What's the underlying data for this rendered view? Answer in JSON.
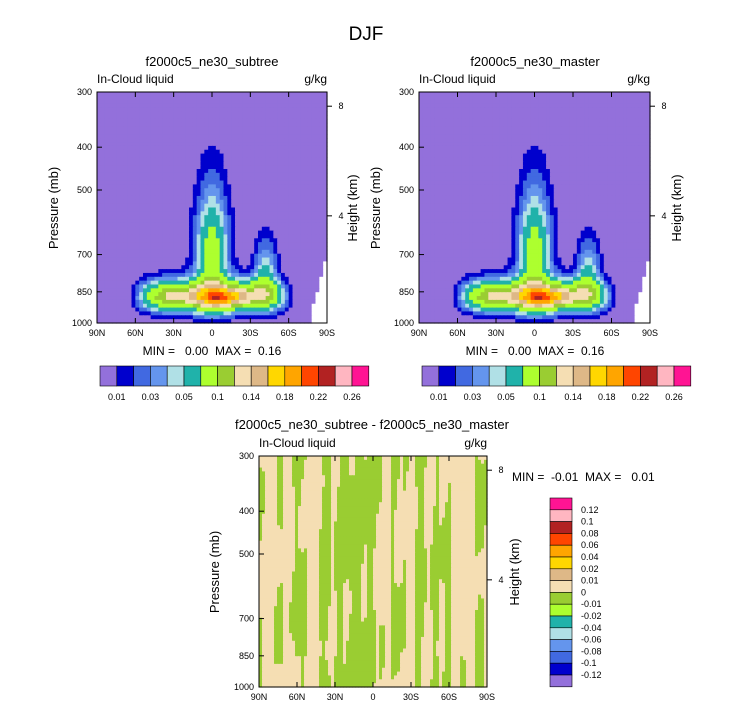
{
  "figure": {
    "title": "DJF"
  },
  "palette": {
    "ctrl_colors": [
      "#9370DB",
      "#0000CD",
      "#4169E1",
      "#6495ED",
      "#B0E0E6",
      "#20B2AA",
      "#ADFF2F",
      "#9ACD32",
      "#F5DEB3",
      "#DEB887",
      "#FFD700",
      "#FFA500",
      "#FF4500",
      "#B22222",
      "#FFB6C1",
      "#FF1493"
    ],
    "diff_colors": [
      "#9370DB",
      "#0000CD",
      "#4169E1",
      "#6495ED",
      "#B0E0E6",
      "#20B2AA",
      "#ADFF2F",
      "#9ACD32",
      "#F5DEB3",
      "#DEB887",
      "#FFD700",
      "#FFA500",
      "#FF4500",
      "#B22222",
      "#FFB6C1",
      "#FF1493"
    ]
  },
  "chart_data": [
    {
      "type": "heatmap",
      "id": "subtree",
      "title": "f2000c5_ne30_subtree",
      "left_label": "In-Cloud liquid",
      "right_label": "g/kg",
      "ylabel": "Pressure (mb)",
      "ylabel_right": "Height (km)",
      "x_ticks": [
        "90N",
        "60N",
        "30N",
        "0",
        "30S",
        "60S",
        "90S"
      ],
      "y_ticks": [
        "300",
        "400",
        "500",
        "700",
        "850",
        "1000"
      ],
      "y_ticks_right": [
        "8",
        "4"
      ],
      "stats": "MIN =   0.00  MAX =  0.16",
      "legend_labels": [
        "0.01",
        "0.03",
        "0.05",
        "0.1",
        "0.14",
        "0.18",
        "0.22",
        "0.26"
      ],
      "field": "cloud_liquid"
    },
    {
      "type": "heatmap",
      "id": "master",
      "title": "f2000c5_ne30_master",
      "left_label": "In-Cloud liquid",
      "right_label": "g/kg",
      "ylabel": "Pressure (mb)",
      "ylabel_right": "Height (km)",
      "x_ticks": [
        "90N",
        "60N",
        "30N",
        "0",
        "30S",
        "60S",
        "90S"
      ],
      "y_ticks": [
        "300",
        "400",
        "500",
        "700",
        "850",
        "1000"
      ],
      "y_ticks_right": [
        "8",
        "4"
      ],
      "stats": "MIN =   0.00  MAX =  0.16",
      "legend_labels": [
        "0.01",
        "0.03",
        "0.05",
        "0.1",
        "0.14",
        "0.18",
        "0.22",
        "0.26"
      ],
      "field": "cloud_liquid"
    },
    {
      "type": "heatmap",
      "id": "diff",
      "title": "f2000c5_ne30_subtree - f2000c5_ne30_master",
      "left_label": "In-Cloud liquid",
      "right_label": "g/kg",
      "ylabel": "Pressure (mb)",
      "ylabel_right": "Height (km)",
      "x_ticks": [
        "90N",
        "60N",
        "30N",
        "0",
        "30S",
        "60S",
        "90S"
      ],
      "y_ticks": [
        "300",
        "400",
        "500",
        "700",
        "850",
        "1000"
      ],
      "y_ticks_right": [
        "8",
        "4"
      ],
      "stats": "MIN =  -0.01  MAX =   0.01",
      "legend_labels": [
        "0.12",
        "0.1",
        "0.08",
        "0.06",
        "0.04",
        "0.02",
        "0.01",
        "0",
        "-0.01",
        "-0.02",
        "-0.04",
        "-0.06",
        "-0.08",
        "-0.1",
        "-0.12"
      ],
      "field": "difference_near_zero"
    }
  ]
}
